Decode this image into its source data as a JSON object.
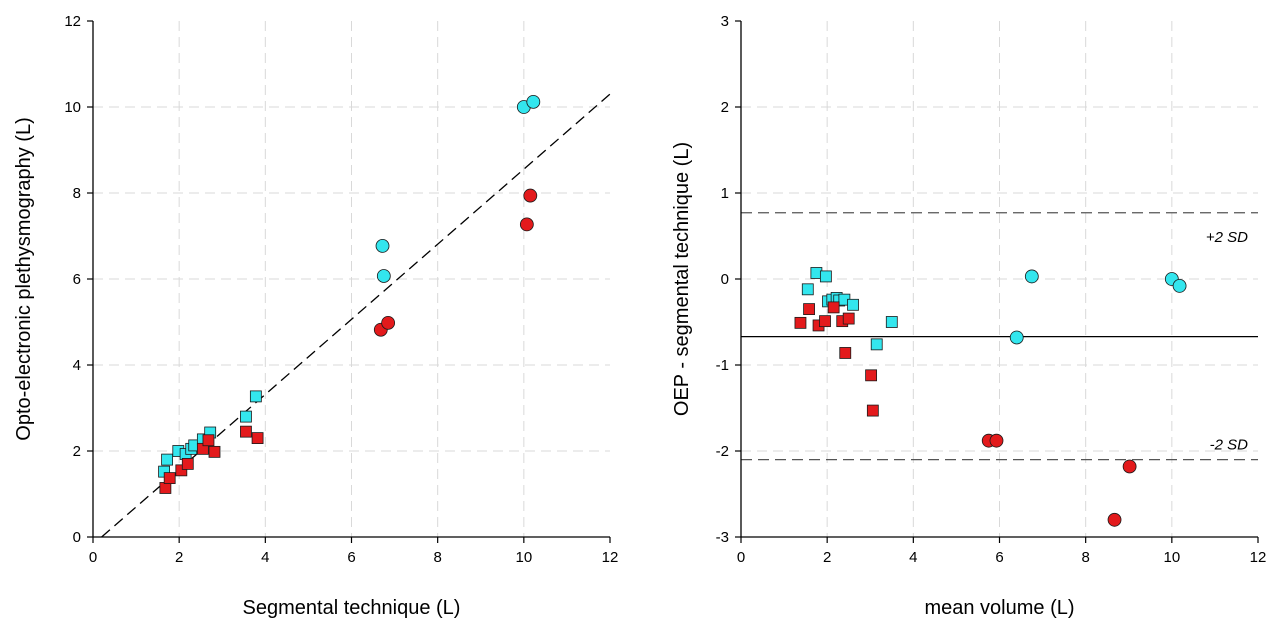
{
  "colors": {
    "cyan": "#33e6ee",
    "red": "#e31a1c",
    "grid": "#d9d9d9",
    "axis": "#000000",
    "marker_edge": "#1a1a1a"
  },
  "chart_data": [
    {
      "type": "scatter",
      "title": "",
      "xlabel": "Segmental technique (L)",
      "ylabel": "Opto-electronic plethysmography (L)",
      "xlim": [
        0,
        12
      ],
      "ylim": [
        0,
        12
      ],
      "xticks": [
        "0",
        "2",
        "4",
        "6",
        "8",
        "10",
        "12"
      ],
      "yticks": [
        "0",
        "2",
        "4",
        "6",
        "8",
        "10",
        "12"
      ],
      "grid": true,
      "reference_line": {
        "style": "dashed",
        "points": [
          [
            0.2,
            0
          ],
          [
            12,
            10.3
          ]
        ]
      },
      "series": [
        {
          "color": "cyan",
          "marker": "square",
          "points": [
            [
              1.65,
              1.52
            ],
            [
              1.72,
              1.8
            ],
            [
              1.98,
              2.0
            ],
            [
              2.15,
              1.93
            ],
            [
              2.28,
              2.05
            ],
            [
              2.35,
              2.13
            ],
            [
              2.55,
              2.27
            ],
            [
              2.72,
              2.43
            ],
            [
              3.55,
              2.8
            ],
            [
              3.78,
              3.27
            ]
          ]
        },
        {
          "color": "red",
          "marker": "square",
          "points": [
            [
              1.68,
              1.14
            ],
            [
              1.78,
              1.37
            ],
            [
              2.05,
              1.55
            ],
            [
              2.2,
              1.7
            ],
            [
              2.55,
              2.05
            ],
            [
              2.68,
              2.25
            ],
            [
              2.82,
              1.98
            ],
            [
              3.55,
              2.45
            ],
            [
              3.82,
              2.3
            ]
          ]
        },
        {
          "color": "cyan",
          "marker": "circle",
          "points": [
            [
              6.72,
              6.77
            ],
            [
              6.75,
              6.07
            ],
            [
              10.0,
              10.0
            ],
            [
              10.22,
              10.12
            ]
          ]
        },
        {
          "color": "red",
          "marker": "circle",
          "points": [
            [
              6.68,
              4.82
            ],
            [
              6.85,
              4.98
            ],
            [
              10.07,
              7.27
            ],
            [
              10.15,
              7.94
            ]
          ]
        }
      ]
    },
    {
      "type": "scatter",
      "title": "",
      "xlabel": "mean volume (L)",
      "ylabel": "OEP - segmental technique (L)",
      "xlim": [
        0,
        12
      ],
      "ylim": [
        -3,
        3
      ],
      "xticks": [
        "0",
        "2",
        "4",
        "6",
        "8",
        "10",
        "12"
      ],
      "yticks": [
        "-3",
        "-2",
        "-1",
        "0",
        "1",
        "2",
        "3"
      ],
      "grid": true,
      "mean_line": {
        "style": "solid",
        "y": -0.67
      },
      "limit_lines": [
        {
          "style": "dashed",
          "y": 0.77,
          "label": "+2 SD"
        },
        {
          "style": "dashed",
          "y": -2.1,
          "label": "-2 SD"
        }
      ],
      "series": [
        {
          "color": "cyan",
          "marker": "square",
          "points": [
            [
              1.55,
              -0.12
            ],
            [
              1.75,
              0.07
            ],
            [
              1.97,
              0.03
            ],
            [
              2.02,
              -0.26
            ],
            [
              2.12,
              -0.24
            ],
            [
              2.22,
              -0.22
            ],
            [
              2.28,
              -0.25
            ],
            [
              2.4,
              -0.24
            ],
            [
              2.6,
              -0.3
            ],
            [
              3.5,
              -0.5
            ],
            [
              3.15,
              -0.76
            ]
          ]
        },
        {
          "color": "red",
          "marker": "square",
          "points": [
            [
              1.38,
              -0.51
            ],
            [
              1.58,
              -0.35
            ],
            [
              1.8,
              -0.54
            ],
            [
              1.95,
              -0.49
            ],
            [
              2.15,
              -0.33
            ],
            [
              2.35,
              -0.49
            ],
            [
              2.5,
              -0.46
            ],
            [
              2.42,
              -0.86
            ],
            [
              3.02,
              -1.12
            ],
            [
              3.06,
              -1.53
            ]
          ]
        },
        {
          "color": "cyan",
          "marker": "circle",
          "points": [
            [
              6.4,
              -0.68
            ],
            [
              6.75,
              0.03
            ],
            [
              10.0,
              0.0
            ],
            [
              10.18,
              -0.08
            ]
          ]
        },
        {
          "color": "red",
          "marker": "circle",
          "points": [
            [
              5.75,
              -1.88
            ],
            [
              5.93,
              -1.88
            ],
            [
              8.67,
              -2.8
            ],
            [
              9.02,
              -2.18
            ]
          ]
        }
      ]
    }
  ]
}
